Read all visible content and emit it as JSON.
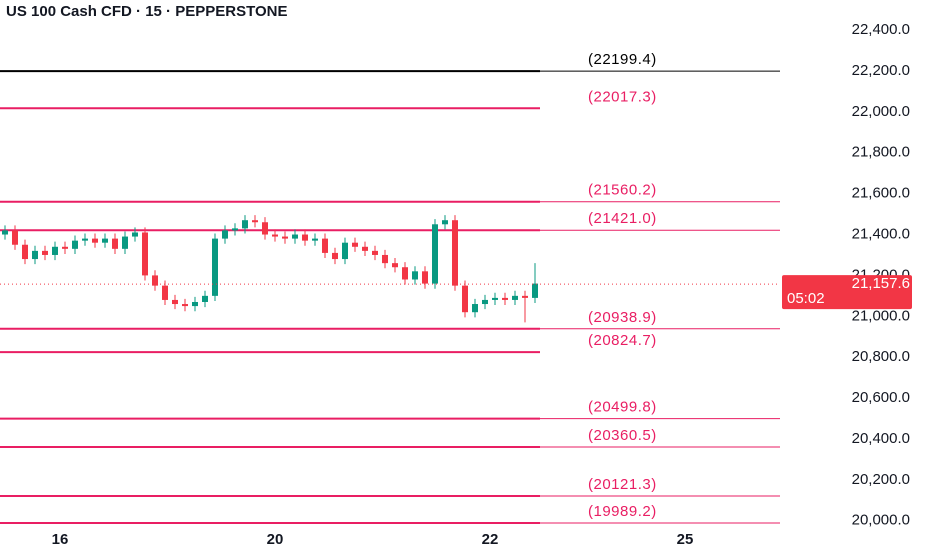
{
  "chart_data": {
    "type": "candlestick",
    "title": "US 100 Cash CFD · 15 · PEPPERSTONE",
    "ylim": [
      19857,
      22547
    ],
    "yticks": [
      {
        "value": 20000,
        "label": "20,000.0"
      },
      {
        "value": 20200,
        "label": "20,200.0"
      },
      {
        "value": 20400,
        "label": "20,400.0"
      },
      {
        "value": 20600,
        "label": "20,600.0"
      },
      {
        "value": 20800,
        "label": "20,800.0"
      },
      {
        "value": 21000,
        "label": "21,000.0"
      },
      {
        "value": 21200,
        "label": "21,200.0"
      },
      {
        "value": 21400,
        "label": "21,400.0"
      },
      {
        "value": 21600,
        "label": "21,600.0"
      },
      {
        "value": 21800,
        "label": "21,800.0"
      },
      {
        "value": 22000,
        "label": "22,000.0"
      },
      {
        "value": 22200,
        "label": "22,200.0"
      },
      {
        "value": 22400,
        "label": "22,400.0"
      }
    ],
    "xlim": [
      0,
      78
    ],
    "xticks": [
      {
        "value": 6,
        "label": "16"
      },
      {
        "value": 27.5,
        "label": "20"
      },
      {
        "value": 49,
        "label": "22"
      },
      {
        "value": 68.5,
        "label": "25"
      }
    ],
    "up_color": "#089981",
    "down_color": "#f23645",
    "open": [
      21400,
      21420,
      21350,
      21280,
      21320,
      21300,
      21340,
      21330,
      21370,
      21380,
      21360,
      21380,
      21330,
      21390,
      21410,
      21200,
      21150,
      21080,
      21060,
      21050,
      21070,
      21100,
      21380,
      21420,
      21430,
      21470,
      21460,
      21400,
      21390,
      21380,
      21400,
      21370,
      21380,
      21310,
      21280,
      21360,
      21340,
      21320,
      21300,
      21260,
      21240,
      21180,
      21220,
      21160,
      21450,
      21470,
      21150,
      21020,
      21060,
      21080,
      21090,
      21080,
      21100,
      21090
    ],
    "high": [
      21445,
      21445,
      21375,
      21345,
      21345,
      21365,
      21365,
      21395,
      21405,
      21405,
      21405,
      21405,
      21415,
      21435,
      21435,
      21225,
      21175,
      21105,
      21085,
      21095,
      21125,
      21405,
      21445,
      21455,
      21495,
      21495,
      21485,
      21425,
      21415,
      21425,
      21425,
      21405,
      21405,
      21335,
      21385,
      21385,
      21365,
      21345,
      21325,
      21285,
      21265,
      21245,
      21245,
      21475,
      21495,
      21495,
      21175,
      21085,
      21105,
      21115,
      21115,
      21125,
      21125,
      21260
    ],
    "low": [
      21375,
      21325,
      21255,
      21255,
      21275,
      21275,
      21305,
      21305,
      21345,
      21335,
      21335,
      21305,
      21305,
      21365,
      21175,
      21125,
      21055,
      21035,
      21025,
      21025,
      21045,
      21075,
      21355,
      21395,
      21405,
      21435,
      21375,
      21365,
      21355,
      21355,
      21345,
      21345,
      21285,
      21255,
      21255,
      21315,
      21295,
      21275,
      21235,
      21215,
      21155,
      21155,
      21135,
      21135,
      21425,
      21125,
      20995,
      20995,
      21035,
      21055,
      21055,
      21055,
      20970,
      21065
    ],
    "close": [
      21420,
      21350,
      21280,
      21320,
      21300,
      21340,
      21330,
      21370,
      21380,
      21360,
      21380,
      21330,
      21390,
      21410,
      21200,
      21150,
      21080,
      21060,
      21050,
      21070,
      21100,
      21380,
      21420,
      21430,
      21470,
      21460,
      21400,
      21390,
      21380,
      21400,
      21370,
      21380,
      21310,
      21280,
      21360,
      21340,
      21320,
      21300,
      21260,
      21240,
      21180,
      21220,
      21160,
      21450,
      21470,
      21150,
      21020,
      21060,
      21080,
      21090,
      21080,
      21100,
      21090,
      21160
    ],
    "levels": [
      {
        "value": 22199.4,
        "label": "(22199.4)",
        "color": "#000000",
        "extend": true
      },
      {
        "value": 22017.3,
        "label": "(22017.3)",
        "color": "#e91e63",
        "extend": false
      },
      {
        "value": 21560.2,
        "label": "(21560.2)",
        "color": "#e91e63",
        "extend": true
      },
      {
        "value": 21421.0,
        "label": "(21421.0)",
        "color": "#e91e63",
        "extend": true
      },
      {
        "value": 20938.9,
        "label": "(20938.9)",
        "color": "#e91e63",
        "extend": true
      },
      {
        "value": 20824.7,
        "label": "(20824.7)",
        "color": "#e91e63",
        "extend": false
      },
      {
        "value": 20499.8,
        "label": "(20499.8)",
        "color": "#e91e63",
        "extend": true
      },
      {
        "value": 20360.5,
        "label": "(20360.5)",
        "color": "#e91e63",
        "extend": true
      },
      {
        "value": 20121.3,
        "label": "(20121.3)",
        "color": "#e91e63",
        "extend": true
      },
      {
        "value": 19989.2,
        "label": "(19989.2)",
        "color": "#e91e63",
        "extend": true
      }
    ],
    "last_price": {
      "value": 21157.6,
      "label": "21,157.6",
      "countdown": "05:02",
      "color": "#f23645"
    }
  }
}
